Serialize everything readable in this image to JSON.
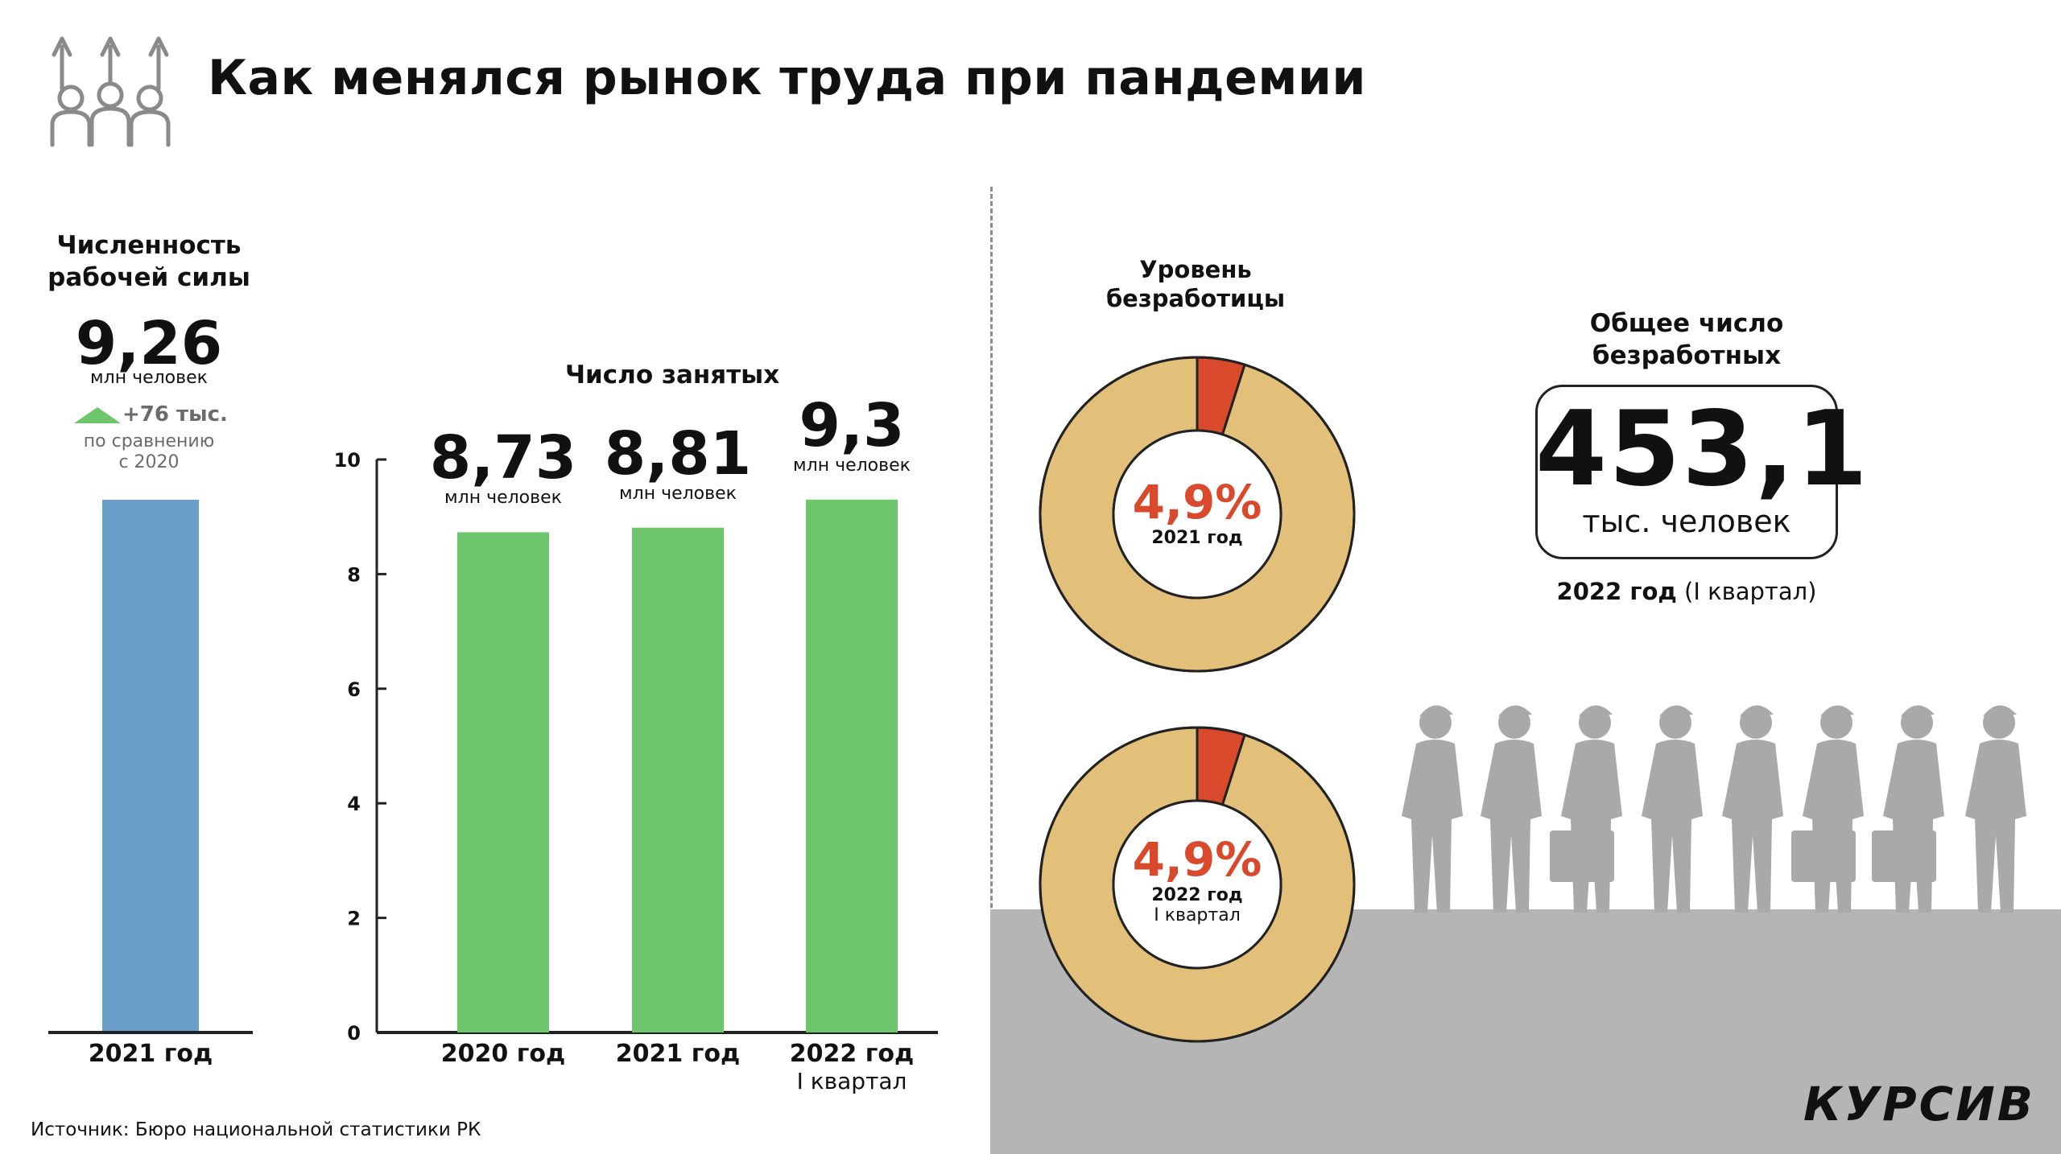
{
  "header": {
    "title": "Как менялся рынок труда при пандемии",
    "icon": "workers-growth-icon"
  },
  "workforce": {
    "title_line1": "Численность",
    "title_line2": "рабочей силы",
    "value": "9,26",
    "unit": "млн человек",
    "change": "+76 тыс.",
    "change_note_line1": "по сравнению",
    "change_note_line2": "с 2020",
    "category": "2021 год"
  },
  "employed": {
    "title": "Число занятых",
    "bars": [
      {
        "value_label": "8,73",
        "unit": "млн человек",
        "cat_line1": "2020 год",
        "cat_line2": ""
      },
      {
        "value_label": "8,81",
        "unit": "млн человек",
        "cat_line1": "2021 год",
        "cat_line2": ""
      },
      {
        "value_label": "9,3",
        "unit": "млн человек",
        "cat_line1": "2022 год",
        "cat_line2": "I квартал"
      }
    ]
  },
  "unemployment_rate": {
    "title_line1": "Уровень",
    "title_line2": "безработицы",
    "donuts": [
      {
        "value_label": "4,9%",
        "period_line1": "2021 год",
        "period_line2": ""
      },
      {
        "value_label": "4,9%",
        "period_line1": "2022 год",
        "period_line2": "I квартал"
      }
    ]
  },
  "unemployed_total": {
    "title_line1": "Общее число",
    "title_line2": "безработных",
    "value": "453,1",
    "unit": "тыс. человек",
    "period_bold": "2022 год",
    "period_rest": " (I квартал)"
  },
  "footer": {
    "source": "Источник: Бюро национальной статистики РК",
    "logo": "КУРСИВ"
  },
  "colors": {
    "workforce_bar": "#6a9fcb",
    "employed_bar": "#6dc66b",
    "donut_main": "#e2c07a",
    "donut_slice": "#d84a2b",
    "percent_text": "#d84a2b",
    "ground": "#b5b5b5",
    "silhouette": "#a9a9a9"
  },
  "chart_data": [
    {
      "type": "bar",
      "title": "Численность рабочей силы",
      "categories": [
        "2021 год"
      ],
      "values": [
        9.26
      ],
      "ylabel": "",
      "ylim": [
        0,
        10
      ]
    },
    {
      "type": "bar",
      "title": "Число занятых",
      "categories": [
        "2020 год",
        "2021 год",
        "2022 год I квартал"
      ],
      "values": [
        8.73,
        8.81,
        9.3
      ],
      "ylim": [
        0,
        10
      ],
      "yticks": [
        0,
        2,
        4,
        6,
        8,
        10
      ]
    },
    {
      "type": "pie",
      "title": "Уровень безработицы",
      "charts": [
        {
          "label": "2021 год",
          "values": [
            4.9,
            95.1
          ]
        },
        {
          "label": "2022 год I квартал",
          "values": [
            4.9,
            95.1
          ]
        }
      ]
    }
  ]
}
